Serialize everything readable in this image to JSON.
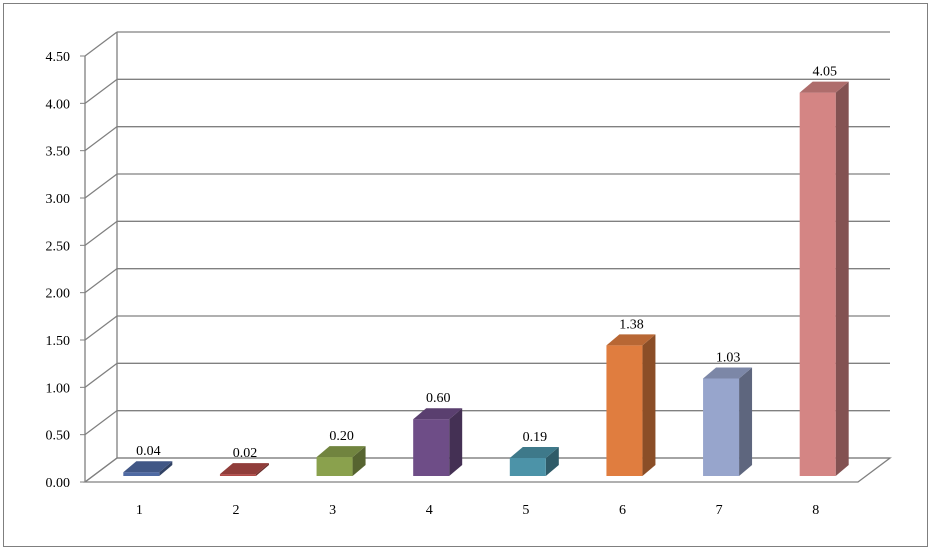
{
  "chart_data": {
    "type": "bar",
    "title": "",
    "xlabel": "",
    "ylabel": "",
    "categories": [
      "1",
      "2",
      "3",
      "4",
      "5",
      "6",
      "7",
      "8"
    ],
    "values": [
      0.04,
      0.02,
      0.2,
      0.6,
      0.19,
      1.38,
      1.03,
      4.05
    ],
    "data_labels": [
      "0.04",
      "0.02",
      "0.20",
      "0.60",
      "0.19",
      "1.38",
      "1.03",
      "4.05"
    ],
    "ylim": [
      0,
      4.5
    ],
    "yticks": [
      "0.00",
      "0.50",
      "1.00",
      "1.50",
      "2.00",
      "2.50",
      "3.00",
      "3.50",
      "4.00",
      "4.50"
    ],
    "grid": true,
    "legend": "none",
    "style": "3d-bar",
    "colors": [
      "#4f6aa3",
      "#b04a47",
      "#8aa14d",
      "#6e4d87",
      "#4c93a8",
      "#e07d3f",
      "#97a5cc",
      "#d48584"
    ]
  }
}
